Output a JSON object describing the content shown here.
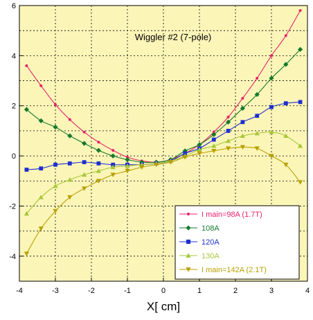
{
  "chart_data": {
    "type": "line",
    "title": "Wiggler  #2 (7-pole)",
    "xlabel": "X[ cm]",
    "ylabel": "",
    "xlim": [
      -4,
      4
    ],
    "ylim": [
      -5,
      6
    ],
    "xticks": [
      -4,
      -3,
      -2,
      -1,
      0,
      1,
      2,
      3,
      4
    ],
    "yticks": [
      -4,
      -2,
      0,
      2,
      4,
      6
    ],
    "grid": true,
    "legend_position": "bottom-right",
    "background": "#fbf5b8",
    "x": [
      -3.8,
      -3.4,
      -3.0,
      -2.6,
      -2.2,
      -1.8,
      -1.4,
      -1.0,
      -0.6,
      -0.2,
      0.2,
      0.6,
      1.0,
      1.4,
      1.8,
      2.2,
      2.6,
      3.0,
      3.4,
      3.8
    ],
    "series": [
      {
        "name": "I main=98A (1.7T)",
        "color": "#e8206a",
        "marker": "circle",
        "values": [
          3.6,
          2.8,
          2.05,
          1.45,
          0.95,
          0.55,
          0.22,
          -0.05,
          -0.2,
          -0.25,
          -0.15,
          0.1,
          0.45,
          0.95,
          1.55,
          2.3,
          3.1,
          4.0,
          4.8,
          5.8
        ]
      },
      {
        "name": "108A",
        "color": "#157a2c",
        "marker": "diamond",
        "values": [
          1.85,
          1.4,
          1.15,
          0.8,
          0.5,
          0.22,
          0.0,
          -0.15,
          -0.25,
          -0.25,
          -0.15,
          0.2,
          0.45,
          0.85,
          1.35,
          1.9,
          2.45,
          3.1,
          3.65,
          4.25
        ]
      },
      {
        "name": "120A",
        "color": "#1e2fd0",
        "marker": "square",
        "values": [
          -0.55,
          -0.5,
          -0.35,
          -0.3,
          -0.25,
          -0.3,
          -0.35,
          -0.35,
          -0.35,
          -0.3,
          -0.2,
          0.1,
          0.3,
          0.65,
          1.0,
          1.35,
          1.6,
          1.95,
          2.1,
          2.15
        ]
      },
      {
        "name": "130A",
        "color": "#a6c83a",
        "marker": "triangle-up",
        "values": [
          -2.3,
          -1.65,
          -1.2,
          -0.95,
          -0.75,
          -0.6,
          -0.45,
          -0.4,
          -0.35,
          -0.3,
          -0.2,
          0.0,
          0.25,
          0.4,
          0.6,
          0.8,
          0.9,
          0.95,
          0.8,
          0.4
        ]
      },
      {
        "name": "I main=142A (2.1T)",
        "color": "#b8a000",
        "marker": "triangle-down",
        "values": [
          -3.9,
          -2.9,
          -2.2,
          -1.65,
          -1.3,
          -1.0,
          -0.75,
          -0.6,
          -0.45,
          -0.35,
          -0.25,
          -0.05,
          0.1,
          0.2,
          0.3,
          0.35,
          0.3,
          0.0,
          -0.35,
          -1.05
        ]
      }
    ]
  }
}
